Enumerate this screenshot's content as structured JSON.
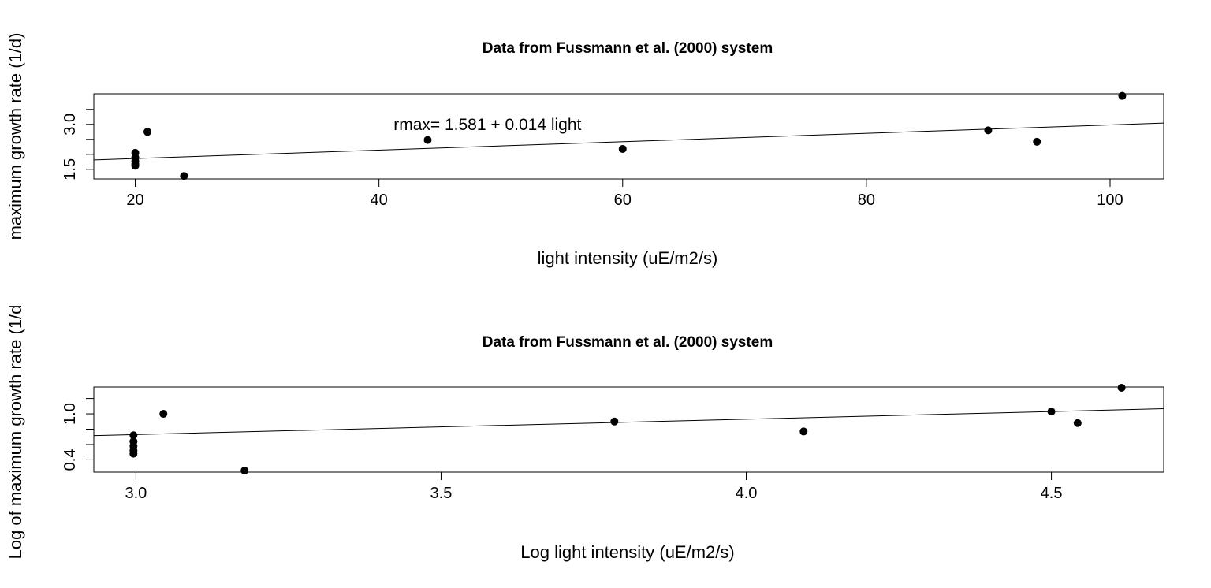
{
  "chart_data": [
    {
      "type": "scatter",
      "title": "Data from Fussmann et al. (2000) system",
      "xlabel": "light intensity (uE/m2/s)",
      "ylabel": "maximum growth rate (1/d)",
      "xlim": [
        16.6,
        104.4
      ],
      "ylim": [
        1.18,
        4.02
      ],
      "xticks": [
        20,
        40,
        60,
        80,
        100
      ],
      "xtick_labels": [
        "20",
        "40",
        "60",
        "80",
        "100"
      ],
      "yticks": [
        1.5,
        2.0,
        2.5,
        3.0,
        3.5
      ],
      "yticks_labeled": [
        1.5,
        3.0
      ],
      "ytick_labels": [
        "1.5",
        "3.0"
      ],
      "points": [
        {
          "x": 20,
          "y": 1.62
        },
        {
          "x": 20,
          "y": 1.68
        },
        {
          "x": 20,
          "y": 1.78
        },
        {
          "x": 20,
          "y": 1.9
        },
        {
          "x": 20,
          "y": 2.05
        },
        {
          "x": 21,
          "y": 2.75
        },
        {
          "x": 24,
          "y": 1.28
        },
        {
          "x": 44,
          "y": 2.48
        },
        {
          "x": 60,
          "y": 2.18
        },
        {
          "x": 90,
          "y": 2.8
        },
        {
          "x": 94,
          "y": 2.42
        },
        {
          "x": 101,
          "y": 3.95
        }
      ],
      "fit_line": {
        "intercept": 1.581,
        "slope": 0.014
      },
      "annotation": {
        "text": "rmax= 1.581 + 0.014 light",
        "x": 41.2,
        "y": 3.0
      }
    },
    {
      "type": "scatter",
      "title": "Data from Fussmann et al. (2000) system",
      "xlabel": "Log light intensity (uE/m2/s)",
      "ylabel": "Log of maximum growth rate (1/d",
      "xlim": [
        2.931,
        4.684
      ],
      "ylim": [
        0.24,
        1.35
      ],
      "xticks": [
        3.0,
        3.5,
        4.0,
        4.5
      ],
      "xtick_labels": [
        "3.0",
        "3.5",
        "4.0",
        "4.5"
      ],
      "yticks": [
        0.4,
        0.6,
        0.8,
        1.0,
        1.2
      ],
      "yticks_labeled": [
        0.4,
        1.0
      ],
      "ytick_labels": [
        "0.4",
        "1.0"
      ],
      "points": [
        {
          "x": 2.996,
          "y": 0.48
        },
        {
          "x": 2.996,
          "y": 0.52
        },
        {
          "x": 2.996,
          "y": 0.58
        },
        {
          "x": 2.996,
          "y": 0.64
        },
        {
          "x": 2.996,
          "y": 0.72
        },
        {
          "x": 3.045,
          "y": 1.0
        },
        {
          "x": 3.178,
          "y": 0.26
        },
        {
          "x": 3.784,
          "y": 0.9
        },
        {
          "x": 4.094,
          "y": 0.77
        },
        {
          "x": 4.5,
          "y": 1.03
        },
        {
          "x": 4.543,
          "y": 0.88
        },
        {
          "x": 4.615,
          "y": 1.34
        }
      ],
      "fit_line": {
        "intercept": 0.13,
        "slope": 0.2
      }
    }
  ]
}
